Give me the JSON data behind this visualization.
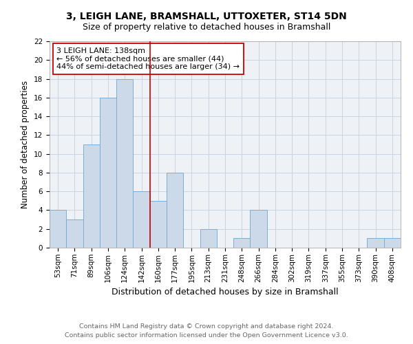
{
  "title": "3, LEIGH LANE, BRAMSHALL, UTTOXETER, ST14 5DN",
  "subtitle": "Size of property relative to detached houses in Bramshall",
  "xlabel": "Distribution of detached houses by size in Bramshall",
  "ylabel": "Number of detached properties",
  "footnote1": "Contains HM Land Registry data © Crown copyright and database right 2024.",
  "footnote2": "Contains public sector information licensed under the Open Government Licence v3.0.",
  "categories": [
    "53sqm",
    "71sqm",
    "89sqm",
    "106sqm",
    "124sqm",
    "142sqm",
    "160sqm",
    "177sqm",
    "195sqm",
    "213sqm",
    "231sqm",
    "248sqm",
    "266sqm",
    "284sqm",
    "302sqm",
    "319sqm",
    "337sqm",
    "355sqm",
    "373sqm",
    "390sqm",
    "408sqm"
  ],
  "values": [
    4,
    3,
    11,
    16,
    18,
    6,
    5,
    8,
    0,
    2,
    0,
    1,
    4,
    0,
    0,
    0,
    0,
    0,
    0,
    1,
    1
  ],
  "bar_color": "#ccd9e8",
  "bar_edge_color": "#7aadd4",
  "bar_edge_width": 0.7,
  "reference_line_x": 5.5,
  "reference_line_color": "#cc0000",
  "annotation_text": "3 LEIGH LANE: 138sqm\n← 56% of detached houses are smaller (44)\n44% of semi-detached houses are larger (34) →",
  "annotation_box_color": "#ffffff",
  "annotation_box_edge_color": "#cc0000",
  "annotation_fontsize": 8,
  "ylim": [
    0,
    22
  ],
  "yticks": [
    0,
    2,
    4,
    6,
    8,
    10,
    12,
    14,
    16,
    18,
    20,
    22
  ],
  "grid_color": "#c8d4e0",
  "background_color": "#eef2f7",
  "title_fontsize": 10,
  "subtitle_fontsize": 9,
  "xlabel_fontsize": 9,
  "ylabel_fontsize": 8.5,
  "tick_fontsize": 7.5,
  "footnote_fontsize": 6.8,
  "footnote_color": "#666666"
}
